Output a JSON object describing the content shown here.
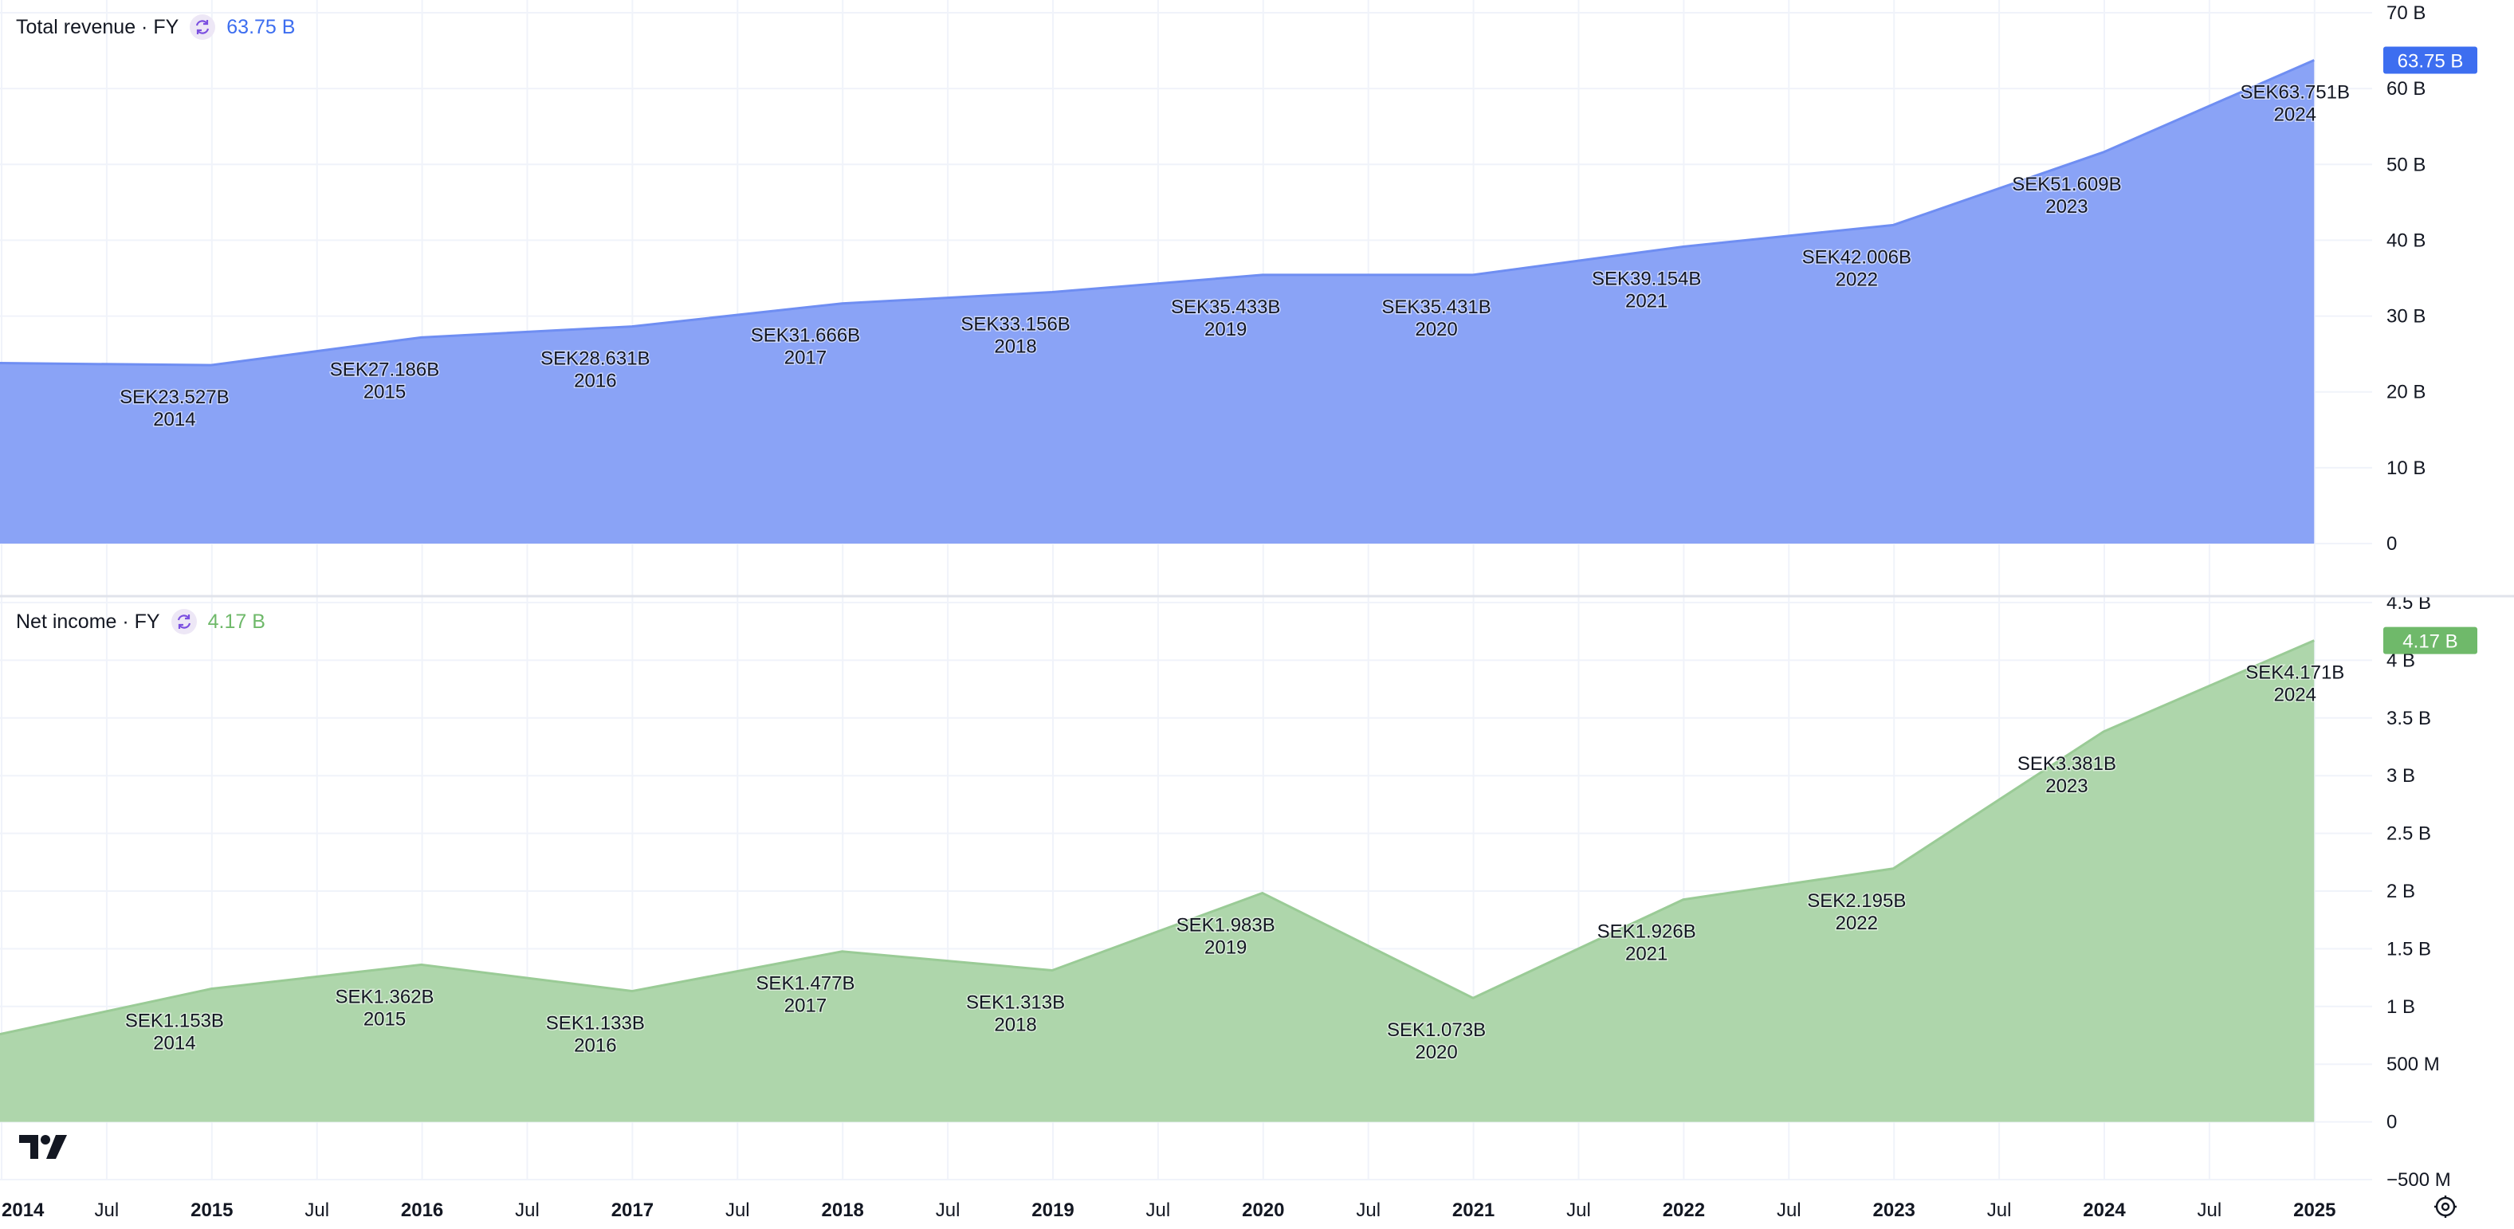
{
  "colors": {
    "revenue_fill": "#8aa3f6",
    "revenue_line": "#6f8ef2",
    "revenue_badge": "#3d6ef0",
    "revenue_text": "#3d6ef0",
    "income_fill": "#aed6ab",
    "income_line": "#9acb96",
    "income_badge": "#6fb96a",
    "income_text": "#6fb96a",
    "grid": "#f0f3fa",
    "divider": "#e0e3eb"
  },
  "icons": {
    "sync": "sync-icon",
    "logo": "tradingview-logo",
    "settings": "settings-gear-icon"
  },
  "x_axis": {
    "labels": [
      {
        "text": "2014",
        "major": true
      },
      {
        "text": "Jul",
        "major": false
      },
      {
        "text": "2015",
        "major": true
      },
      {
        "text": "Jul",
        "major": false
      },
      {
        "text": "2016",
        "major": true
      },
      {
        "text": "Jul",
        "major": false
      },
      {
        "text": "2017",
        "major": true
      },
      {
        "text": "Jul",
        "major": false
      },
      {
        "text": "2018",
        "major": true
      },
      {
        "text": "Jul",
        "major": false
      },
      {
        "text": "2019",
        "major": true
      },
      {
        "text": "Jul",
        "major": false
      },
      {
        "text": "2020",
        "major": true
      },
      {
        "text": "Jul",
        "major": false
      },
      {
        "text": "2021",
        "major": true
      },
      {
        "text": "Jul",
        "major": false
      },
      {
        "text": "2022",
        "major": true
      },
      {
        "text": "Jul",
        "major": false
      },
      {
        "text": "2023",
        "major": true
      },
      {
        "text": "Jul",
        "major": false
      },
      {
        "text": "2024",
        "major": true
      },
      {
        "text": "Jul",
        "major": false
      },
      {
        "text": "2025",
        "major": true
      }
    ]
  },
  "chart_data": [
    {
      "type": "area",
      "legend": {
        "title": "Total revenue · FY",
        "value": "63.75 B"
      },
      "badge": "63.75 B",
      "y_ticks": [
        "70 B",
        "60 B",
        "50 B",
        "40 B",
        "30 B",
        "20 B",
        "10 B",
        "0"
      ],
      "ylim": [
        0,
        70
      ],
      "grid": true,
      "x": [
        "2013-12-31",
        "2014-12-31",
        "2015-12-31",
        "2016-12-31",
        "2017-12-31",
        "2018-12-31",
        "2019-12-31",
        "2020-12-31",
        "2021-12-31",
        "2022-12-31",
        "2023-12-31",
        "2024-12-31"
      ],
      "values": [
        23.8,
        23.527,
        27.186,
        28.631,
        31.666,
        33.156,
        35.433,
        35.431,
        39.154,
        42.006,
        51.609,
        63.751
      ],
      "labeled_points": [
        {
          "value_text": "SEK23.527B",
          "year": "2014"
        },
        {
          "value_text": "SEK27.186B",
          "year": "2015"
        },
        {
          "value_text": "SEK28.631B",
          "year": "2016"
        },
        {
          "value_text": "SEK31.666B",
          "year": "2017"
        },
        {
          "value_text": "SEK33.156B",
          "year": "2018"
        },
        {
          "value_text": "SEK35.433B",
          "year": "2019"
        },
        {
          "value_text": "SEK35.431B",
          "year": "2020"
        },
        {
          "value_text": "SEK39.154B",
          "year": "2021"
        },
        {
          "value_text": "SEK42.006B",
          "year": "2022"
        },
        {
          "value_text": "SEK51.609B",
          "year": "2023"
        },
        {
          "value_text": "SEK63.751B",
          "year": "2024"
        }
      ]
    },
    {
      "type": "area",
      "legend": {
        "title": "Net income · FY",
        "value": "4.17 B"
      },
      "badge": "4.17 B",
      "y_ticks": [
        "4.5 B",
        "4 B",
        "3.5 B",
        "3 B",
        "2.5 B",
        "2 B",
        "1.5 B",
        "1 B",
        "500 M",
        "0",
        "−500 M"
      ],
      "ylim": [
        -0.5,
        4.5
      ],
      "grid": true,
      "x": [
        "2013-12-31",
        "2014-12-31",
        "2015-12-31",
        "2016-12-31",
        "2017-12-31",
        "2018-12-31",
        "2019-12-31",
        "2020-12-31",
        "2021-12-31",
        "2022-12-31",
        "2023-12-31",
        "2024-12-31"
      ],
      "values": [
        0.76,
        1.153,
        1.362,
        1.133,
        1.477,
        1.313,
        1.983,
        1.073,
        1.926,
        2.195,
        3.381,
        4.171
      ],
      "labeled_points": [
        {
          "value_text": "SEK1.153B",
          "year": "2014"
        },
        {
          "value_text": "SEK1.362B",
          "year": "2015"
        },
        {
          "value_text": "SEK1.133B",
          "year": "2016"
        },
        {
          "value_text": "SEK1.477B",
          "year": "2017"
        },
        {
          "value_text": "SEK1.313B",
          "year": "2018"
        },
        {
          "value_text": "SEK1.983B",
          "year": "2019"
        },
        {
          "value_text": "SEK1.073B",
          "year": "2020"
        },
        {
          "value_text": "SEK1.926B",
          "year": "2021"
        },
        {
          "value_text": "SEK2.195B",
          "year": "2022"
        },
        {
          "value_text": "SEK3.381B",
          "year": "2023"
        },
        {
          "value_text": "SEK4.171B",
          "year": "2024"
        }
      ]
    }
  ]
}
